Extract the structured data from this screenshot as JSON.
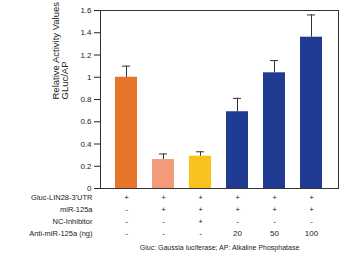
{
  "chart_data": {
    "type": "bar",
    "ylabel": [
      "Relative Activity Values",
      "GLuc/AP"
    ],
    "categories": [
      null,
      null,
      null,
      null,
      null,
      null
    ],
    "values": [
      1.0,
      0.26,
      0.29,
      0.69,
      1.04,
      1.36
    ],
    "errors": [
      0.1,
      0.05,
      0.04,
      0.12,
      0.11,
      0.2
    ],
    "colors": [
      "#e8742a",
      "#f29a7a",
      "#f7c21c",
      "#1f3b92",
      "#1f3b92",
      "#1f3b92"
    ],
    "ylim": [
      0,
      1.6
    ],
    "yticks": [
      0,
      0.2,
      0.4,
      0.6,
      0.8,
      1,
      1.2,
      1.4,
      1.6
    ],
    "tick_labels": "y",
    "treatment_rows": [
      {
        "label": "Gluc-LIN28-3'UTR",
        "values": [
          "+",
          "+",
          "+",
          "+",
          "+",
          "+"
        ]
      },
      {
        "label": "miR-125a",
        "values": [
          "-",
          "+",
          "+",
          "+",
          "+",
          "+"
        ]
      },
      {
        "label": "NC-Inhibitor",
        "values": [
          "-",
          "-",
          "+",
          "-",
          "-",
          "-"
        ]
      },
      {
        "label": "Anti-miR-125a (ng)",
        "values": [
          "-",
          "-",
          "-",
          "20",
          "50",
          "100"
        ]
      }
    ],
    "footnote": "Gluc: Gaussia luciferase; AP: Alkaline Phosphatase"
  }
}
